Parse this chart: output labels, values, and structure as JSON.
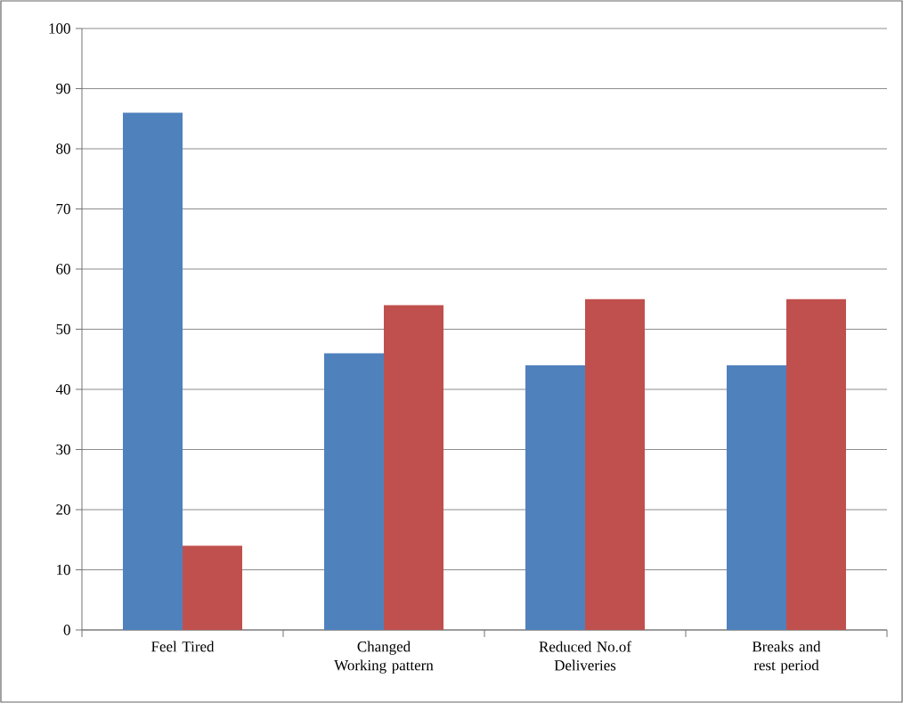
{
  "chart_data": {
    "type": "bar",
    "categories": [
      "Feel Tired",
      "Changed Working pattern",
      "Reduced No.of Deliveries",
      "Breaks and rest period"
    ],
    "series": [
      {
        "color": "#4f81bd",
        "values": [
          86,
          46,
          44,
          44
        ]
      },
      {
        "color": "#c0504d",
        "values": [
          14,
          54,
          55,
          55
        ]
      }
    ],
    "ylim": [
      0,
      100
    ],
    "yticks": [
      0,
      10,
      20,
      30,
      40,
      50,
      60,
      70,
      80,
      90,
      100
    ],
    "grid": "y"
  }
}
